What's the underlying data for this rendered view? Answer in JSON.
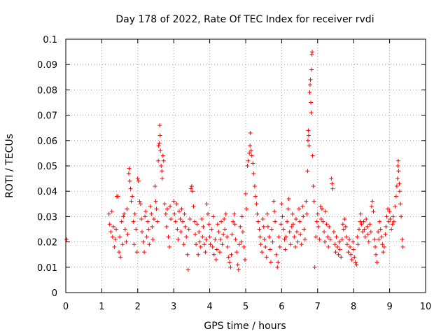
{
  "chart_data": {
    "type": "scatter",
    "title": "Day 178 of 2022, Rate Of TEC Index for receiver rvdi",
    "xlabel": "GPS time / hours",
    "ylabel": "ROTI / TECUs",
    "xlim": [
      0,
      10
    ],
    "ylim": [
      0,
      0.1
    ],
    "grid": true,
    "marker": "plus",
    "color": "#ff0000",
    "x_ticks": [
      0,
      1,
      2,
      3,
      4,
      5,
      6,
      7,
      8,
      9,
      10
    ],
    "x_tick_labels": [
      "0",
      "1",
      "2",
      "3",
      "4",
      "5",
      "6",
      "7",
      "8",
      "9",
      "10"
    ],
    "y_ticks": [
      0,
      0.01,
      0.02,
      0.03,
      0.04,
      0.05,
      0.06,
      0.07,
      0.08,
      0.09,
      0.1
    ],
    "y_tick_labels": [
      "0",
      "0.01",
      "0.02",
      "0.03",
      "0.04",
      "0.05",
      "0.06",
      "0.07",
      "0.08",
      "0.09",
      "0.1"
    ],
    "points": [
      [
        0.02,
        0.021
      ],
      [
        1.2,
        0.031
      ],
      [
        1.22,
        0.027
      ],
      [
        1.25,
        0.024
      ],
      [
        1.28,
        0.032
      ],
      [
        1.3,
        0.022
      ],
      [
        1.32,
        0.026
      ],
      [
        1.35,
        0.018
      ],
      [
        1.38,
        0.021
      ],
      [
        1.4,
        0.025
      ],
      [
        1.42,
        0.038
      ],
      [
        1.45,
        0.038
      ],
      [
        1.48,
        0.016
      ],
      [
        1.5,
        0.022
      ],
      [
        1.52,
        0.014
      ],
      [
        1.55,
        0.028
      ],
      [
        1.58,
        0.019
      ],
      [
        1.6,
        0.03
      ],
      [
        1.62,
        0.031
      ],
      [
        1.65,
        0.025
      ],
      [
        1.68,
        0.02
      ],
      [
        1.7,
        0.033
      ],
      [
        1.72,
        0.023
      ],
      [
        1.75,
        0.047
      ],
      [
        1.76,
        0.049
      ],
      [
        1.78,
        0.044
      ],
      [
        1.8,
        0.041
      ],
      [
        1.82,
        0.036
      ],
      [
        1.85,
        0.038
      ],
      [
        1.88,
        0.028
      ],
      [
        1.9,
        0.019
      ],
      [
        1.92,
        0.031
      ],
      [
        1.95,
        0.025
      ],
      [
        1.98,
        0.016
      ],
      [
        2.0,
        0.045
      ],
      [
        2.02,
        0.044
      ],
      [
        2.05,
        0.036
      ],
      [
        2.08,
        0.035
      ],
      [
        2.1,
        0.029
      ],
      [
        2.12,
        0.024
      ],
      [
        2.15,
        0.02
      ],
      [
        2.18,
        0.016
      ],
      [
        2.2,
        0.03
      ],
      [
        2.22,
        0.032
      ],
      [
        2.25,
        0.022
      ],
      [
        2.28,
        0.028
      ],
      [
        2.3,
        0.025
      ],
      [
        2.32,
        0.019
      ],
      [
        2.35,
        0.034
      ],
      [
        2.38,
        0.031
      ],
      [
        2.4,
        0.026
      ],
      [
        2.42,
        0.021
      ],
      [
        2.45,
        0.029
      ],
      [
        2.48,
        0.042
      ],
      [
        2.5,
        0.036
      ],
      [
        2.52,
        0.033
      ],
      [
        2.55,
        0.028
      ],
      [
        2.57,
        0.052
      ],
      [
        2.58,
        0.058
      ],
      [
        2.6,
        0.059
      ],
      [
        2.61,
        0.066
      ],
      [
        2.62,
        0.062
      ],
      [
        2.63,
        0.056
      ],
      [
        2.65,
        0.05
      ],
      [
        2.67,
        0.048
      ],
      [
        2.68,
        0.045
      ],
      [
        2.7,
        0.054
      ],
      [
        2.72,
        0.052
      ],
      [
        2.75,
        0.035
      ],
      [
        2.78,
        0.031
      ],
      [
        2.8,
        0.026
      ],
      [
        2.82,
        0.033
      ],
      [
        2.85,
        0.022
      ],
      [
        2.88,
        0.018
      ],
      [
        2.9,
        0.034
      ],
      [
        2.92,
        0.029
      ],
      [
        3.0,
        0.036
      ],
      [
        3.02,
        0.031
      ],
      [
        3.05,
        0.028
      ],
      [
        3.08,
        0.035
      ],
      [
        3.1,
        0.025
      ],
      [
        3.12,
        0.021
      ],
      [
        3.15,
        0.032
      ],
      [
        3.18,
        0.029
      ],
      [
        3.2,
        0.024
      ],
      [
        3.22,
        0.033
      ],
      [
        3.25,
        0.028
      ],
      [
        3.28,
        0.019
      ],
      [
        3.3,
        0.031
      ],
      [
        3.32,
        0.026
      ],
      [
        3.35,
        0.022
      ],
      [
        3.38,
        0.015
      ],
      [
        3.4,
        0.009
      ],
      [
        3.42,
        0.025
      ],
      [
        3.45,
        0.029
      ],
      [
        3.48,
        0.041
      ],
      [
        3.5,
        0.042
      ],
      [
        3.52,
        0.04
      ],
      [
        3.55,
        0.034
      ],
      [
        3.58,
        0.028
      ],
      [
        3.6,
        0.023
      ],
      [
        3.62,
        0.019
      ],
      [
        3.65,
        0.027
      ],
      [
        3.68,
        0.015
      ],
      [
        3.7,
        0.024
      ],
      [
        3.72,
        0.02
      ],
      [
        3.75,
        0.018
      ],
      [
        3.78,
        0.029
      ],
      [
        3.8,
        0.022
      ],
      [
        3.82,
        0.026
      ],
      [
        3.85,
        0.019
      ],
      [
        3.88,
        0.016
      ],
      [
        3.9,
        0.021
      ],
      [
        3.92,
        0.035
      ],
      [
        3.95,
        0.031
      ],
      [
        3.98,
        0.027
      ],
      [
        4.0,
        0.022
      ],
      [
        4.02,
        0.019
      ],
      [
        4.05,
        0.025
      ],
      [
        4.08,
        0.018
      ],
      [
        4.1,
        0.03
      ],
      [
        4.12,
        0.015
      ],
      [
        4.15,
        0.021
      ],
      [
        4.18,
        0.013
      ],
      [
        4.2,
        0.017
      ],
      [
        4.22,
        0.027
      ],
      [
        4.25,
        0.024
      ],
      [
        4.28,
        0.016
      ],
      [
        4.3,
        0.021
      ],
      [
        4.32,
        0.028
      ],
      [
        4.35,
        0.019
      ],
      [
        4.38,
        0.023
      ],
      [
        4.4,
        0.029
      ],
      [
        4.42,
        0.025
      ],
      [
        4.45,
        0.031
      ],
      [
        4.48,
        0.022
      ],
      [
        4.5,
        0.018
      ],
      [
        4.52,
        0.014
      ],
      [
        4.55,
        0.012
      ],
      [
        4.58,
        0.01
      ],
      [
        4.6,
        0.015
      ],
      [
        4.62,
        0.023
      ],
      [
        4.65,
        0.028
      ],
      [
        4.68,
        0.031
      ],
      [
        4.7,
        0.027
      ],
      [
        4.72,
        0.021
      ],
      [
        4.75,
        0.016
      ],
      [
        4.78,
        0.011
      ],
      [
        4.8,
        0.009
      ],
      [
        4.82,
        0.019
      ],
      [
        4.85,
        0.026
      ],
      [
        4.88,
        0.02
      ],
      [
        4.9,
        0.03
      ],
      [
        4.92,
        0.024
      ],
      [
        4.95,
        0.018
      ],
      [
        4.98,
        0.013
      ],
      [
        5.0,
        0.039
      ],
      [
        5.02,
        0.033
      ],
      [
        5.05,
        0.05
      ],
      [
        5.07,
        0.052
      ],
      [
        5.1,
        0.055
      ],
      [
        5.12,
        0.058
      ],
      [
        5.13,
        0.063
      ],
      [
        5.15,
        0.056
      ],
      [
        5.17,
        0.054
      ],
      [
        5.2,
        0.051
      ],
      [
        5.22,
        0.047
      ],
      [
        5.25,
        0.042
      ],
      [
        5.27,
        0.038
      ],
      [
        5.3,
        0.035
      ],
      [
        5.32,
        0.031
      ],
      [
        5.35,
        0.028
      ],
      [
        5.38,
        0.025
      ],
      [
        5.4,
        0.022
      ],
      [
        5.42,
        0.019
      ],
      [
        5.45,
        0.016
      ],
      [
        5.48,
        0.029
      ],
      [
        5.5,
        0.026
      ],
      [
        5.52,
        0.021
      ],
      [
        5.55,
        0.018
      ],
      [
        5.58,
        0.014
      ],
      [
        5.6,
        0.031
      ],
      [
        5.62,
        0.026
      ],
      [
        5.65,
        0.022
      ],
      [
        5.68,
        0.017
      ],
      [
        5.7,
        0.012
      ],
      [
        5.72,
        0.025
      ],
      [
        5.75,
        0.02
      ],
      [
        5.78,
        0.036
      ],
      [
        5.8,
        0.032
      ],
      [
        5.82,
        0.028
      ],
      [
        5.85,
        0.015
      ],
      [
        5.88,
        0.01
      ],
      [
        5.9,
        0.012
      ],
      [
        5.92,
        0.022
      ],
      [
        5.95,
        0.018
      ],
      [
        5.98,
        0.027
      ],
      [
        6.0,
        0.035
      ],
      [
        6.02,
        0.03
      ],
      [
        6.05,
        0.025
      ],
      [
        6.08,
        0.021
      ],
      [
        6.1,
        0.017
      ],
      [
        6.12,
        0.022
      ],
      [
        6.15,
        0.028
      ],
      [
        6.18,
        0.033
      ],
      [
        6.2,
        0.037
      ],
      [
        6.22,
        0.024
      ],
      [
        6.25,
        0.019
      ],
      [
        6.28,
        0.026
      ],
      [
        6.3,
        0.031
      ],
      [
        6.32,
        0.027
      ],
      [
        6.35,
        0.022
      ],
      [
        6.38,
        0.018
      ],
      [
        6.4,
        0.029
      ],
      [
        6.42,
        0.024
      ],
      [
        6.45,
        0.02
      ],
      [
        6.48,
        0.033
      ],
      [
        6.5,
        0.028
      ],
      [
        6.52,
        0.023
      ],
      [
        6.55,
        0.019
      ],
      [
        6.58,
        0.034
      ],
      [
        6.6,
        0.03
      ],
      [
        6.62,
        0.025
      ],
      [
        6.65,
        0.021
      ],
      [
        6.68,
        0.036
      ],
      [
        6.7,
        0.031
      ],
      [
        6.72,
        0.048
      ],
      [
        6.73,
        0.06
      ],
      [
        6.74,
        0.064
      ],
      [
        6.75,
        0.062
      ],
      [
        6.76,
        0.058
      ],
      [
        6.78,
        0.079
      ],
      [
        6.79,
        0.082
      ],
      [
        6.8,
        0.084
      ],
      [
        6.81,
        0.075
      ],
      [
        6.82,
        0.071
      ],
      [
        6.83,
        0.088
      ],
      [
        6.84,
        0.094
      ],
      [
        6.85,
        0.095
      ],
      [
        6.86,
        0.054
      ],
      [
        6.88,
        0.042
      ],
      [
        6.9,
        0.036
      ],
      [
        6.92,
        0.01
      ],
      [
        6.95,
        0.022
      ],
      [
        6.98,
        0.028
      ],
      [
        7.0,
        0.031
      ],
      [
        7.02,
        0.026
      ],
      [
        7.05,
        0.021
      ],
      [
        7.08,
        0.034
      ],
      [
        7.1,
        0.029
      ],
      [
        7.12,
        0.033
      ],
      [
        7.15,
        0.028
      ],
      [
        7.18,
        0.024
      ],
      [
        7.2,
        0.02
      ],
      [
        7.22,
        0.032
      ],
      [
        7.25,
        0.027
      ],
      [
        7.28,
        0.022
      ],
      [
        7.3,
        0.018
      ],
      [
        7.32,
        0.026
      ],
      [
        7.35,
        0.021
      ],
      [
        7.38,
        0.045
      ],
      [
        7.4,
        0.043
      ],
      [
        7.42,
        0.041
      ],
      [
        7.45,
        0.024
      ],
      [
        7.48,
        0.019
      ],
      [
        7.5,
        0.016
      ],
      [
        7.52,
        0.022
      ],
      [
        7.55,
        0.018
      ],
      [
        7.58,
        0.015
      ],
      [
        7.6,
        0.02
      ],
      [
        7.62,
        0.017
      ],
      [
        7.65,
        0.014
      ],
      [
        7.68,
        0.021
      ],
      [
        7.7,
        0.027
      ],
      [
        7.72,
        0.025
      ],
      [
        7.75,
        0.029
      ],
      [
        7.78,
        0.026
      ],
      [
        7.8,
        0.022
      ],
      [
        7.82,
        0.019
      ],
      [
        7.85,
        0.016
      ],
      [
        7.88,
        0.021
      ],
      [
        7.9,
        0.018
      ],
      [
        7.92,
        0.015
      ],
      [
        7.95,
        0.013
      ],
      [
        7.98,
        0.02
      ],
      [
        8.0,
        0.017
      ],
      [
        8.02,
        0.014
      ],
      [
        8.05,
        0.012
      ],
      [
        8.08,
        0.011
      ],
      [
        8.1,
        0.022
      ],
      [
        8.12,
        0.019
      ],
      [
        8.15,
        0.025
      ],
      [
        8.18,
        0.028
      ],
      [
        8.2,
        0.031
      ],
      [
        8.22,
        0.027
      ],
      [
        8.25,
        0.024
      ],
      [
        8.28,
        0.028
      ],
      [
        8.3,
        0.025
      ],
      [
        8.32,
        0.022
      ],
      [
        8.35,
        0.029
      ],
      [
        8.38,
        0.026
      ],
      [
        8.4,
        0.023
      ],
      [
        8.42,
        0.02
      ],
      [
        8.45,
        0.027
      ],
      [
        8.48,
        0.024
      ],
      [
        8.5,
        0.034
      ],
      [
        8.52,
        0.036
      ],
      [
        8.55,
        0.032
      ],
      [
        8.58,
        0.021
      ],
      [
        8.6,
        0.018
      ],
      [
        8.62,
        0.015
      ],
      [
        8.65,
        0.012
      ],
      [
        8.68,
        0.024
      ],
      [
        8.7,
        0.021
      ],
      [
        8.72,
        0.028
      ],
      [
        8.75,
        0.025
      ],
      [
        8.78,
        0.022
      ],
      [
        8.8,
        0.019
      ],
      [
        8.82,
        0.016
      ],
      [
        8.85,
        0.018
      ],
      [
        8.88,
        0.023
      ],
      [
        8.9,
        0.026
      ],
      [
        8.92,
        0.03
      ],
      [
        8.95,
        0.033
      ],
      [
        8.98,
        0.028
      ],
      [
        9.0,
        0.032
      ],
      [
        9.02,
        0.029
      ],
      [
        9.05,
        0.025
      ],
      [
        9.08,
        0.027
      ],
      [
        9.1,
        0.03
      ],
      [
        9.12,
        0.028
      ],
      [
        9.15,
        0.034
      ],
      [
        9.18,
        0.038
      ],
      [
        9.2,
        0.042
      ],
      [
        9.22,
        0.045
      ],
      [
        9.23,
        0.05
      ],
      [
        9.24,
        0.052
      ],
      [
        9.25,
        0.048
      ],
      [
        9.27,
        0.043
      ],
      [
        9.28,
        0.04
      ],
      [
        9.3,
        0.035
      ],
      [
        9.32,
        0.03
      ],
      [
        9.35,
        0.021
      ],
      [
        9.37,
        0.018
      ]
    ]
  }
}
